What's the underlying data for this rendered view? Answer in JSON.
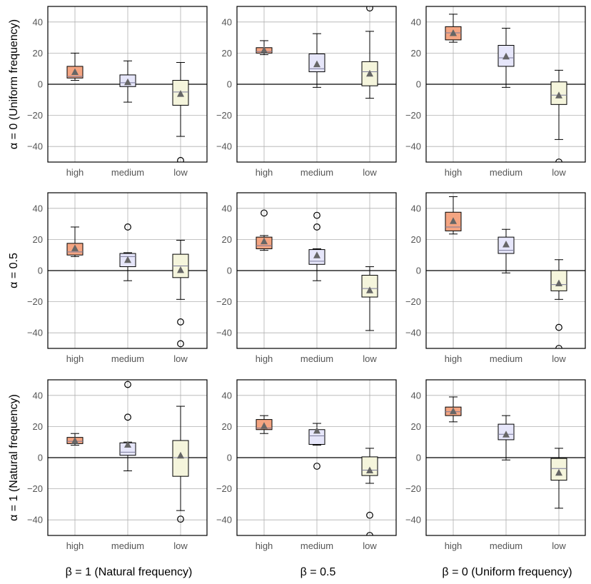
{
  "chart_data": {
    "type": "box",
    "grid": true,
    "ylim": [
      -50,
      50
    ],
    "yticks": [
      -40,
      -20,
      0,
      20,
      40
    ],
    "categories": [
      "high",
      "medium",
      "low"
    ],
    "category_colors": [
      "#F4A582",
      "#E6E6FA",
      "#F5F5DC"
    ],
    "zero_line": 0,
    "row_labels": [
      "α = 0 (Uniform frequency)",
      "α = 0.5",
      "α = 1 (Natural frequency)"
    ],
    "col_labels": [
      "β = 1 (Natural frequency)",
      "β = 0.5",
      "β = 0 (Uniform frequency)"
    ],
    "panels": [
      {
        "row": 0,
        "col": 0,
        "boxes": [
          {
            "category": "high",
            "whislo": 2.5,
            "q1": 4,
            "med": 5,
            "q3": 11.5,
            "whishi": 20,
            "mean": 8,
            "fliers": []
          },
          {
            "category": "medium",
            "whislo": -11.5,
            "q1": -1.5,
            "med": 1,
            "q3": 6,
            "whishi": 15,
            "mean": 1.5,
            "fliers": []
          },
          {
            "category": "low",
            "whislo": -33.5,
            "q1": -13.5,
            "med": -5,
            "q3": 2.5,
            "whishi": 14,
            "mean": -6,
            "fliers": [
              -49
            ]
          }
        ]
      },
      {
        "row": 0,
        "col": 1,
        "boxes": [
          {
            "category": "high",
            "whislo": 19,
            "q1": 20,
            "med": 21,
            "q3": 23.5,
            "whishi": 28,
            "mean": 22,
            "fliers": []
          },
          {
            "category": "medium",
            "whislo": -2,
            "q1": 8,
            "med": 10,
            "q3": 19.5,
            "whishi": 32.5,
            "mean": 13,
            "fliers": []
          },
          {
            "category": "low",
            "whislo": -9,
            "q1": -1,
            "med": 8,
            "q3": 14.5,
            "whishi": 34,
            "mean": 7,
            "fliers": [
              49
            ]
          }
        ]
      },
      {
        "row": 0,
        "col": 2,
        "boxes": [
          {
            "category": "high",
            "whislo": 27,
            "q1": 28.5,
            "med": 33,
            "q3": 37,
            "whishi": 45,
            "mean": 33,
            "fliers": []
          },
          {
            "category": "medium",
            "whislo": -2,
            "q1": 11.5,
            "med": 17,
            "q3": 25,
            "whishi": 36,
            "mean": 18,
            "fliers": []
          },
          {
            "category": "low",
            "whislo": -35.5,
            "q1": -13,
            "med": -7,
            "q3": 1.5,
            "whishi": 9,
            "mean": -7,
            "fliers": [
              -50
            ]
          }
        ]
      },
      {
        "row": 1,
        "col": 0,
        "boxes": [
          {
            "category": "high",
            "whislo": 9,
            "q1": 10,
            "med": 12,
            "q3": 17.5,
            "whishi": 28,
            "mean": 14.5,
            "fliers": []
          },
          {
            "category": "medium",
            "whislo": -6.5,
            "q1": 2.5,
            "med": 9,
            "q3": 11,
            "whishi": 11.5,
            "mean": 7,
            "fliers": [
              28
            ]
          },
          {
            "category": "low",
            "whislo": -18.5,
            "q1": -4.5,
            "med": 3,
            "q3": 10.5,
            "whishi": 19.5,
            "mean": 0.5,
            "fliers": [
              -33,
              -47
            ]
          }
        ]
      },
      {
        "row": 1,
        "col": 1,
        "boxes": [
          {
            "category": "high",
            "whislo": 13,
            "q1": 14,
            "med": 16,
            "q3": 21.5,
            "whishi": 22.5,
            "mean": 19,
            "fliers": [
              37
            ]
          },
          {
            "category": "medium",
            "whislo": -6.5,
            "q1": 4,
            "med": 6,
            "q3": 13.5,
            "whishi": 14,
            "mean": 10,
            "fliers": [
              28,
              35.5
            ]
          },
          {
            "category": "low",
            "whislo": -38.5,
            "q1": -17,
            "med": -11.5,
            "q3": -3,
            "whishi": 2.5,
            "mean": -12.5,
            "fliers": []
          }
        ]
      },
      {
        "row": 1,
        "col": 2,
        "boxes": [
          {
            "category": "high",
            "whislo": 23.5,
            "q1": 25.5,
            "med": 28,
            "q3": 37.5,
            "whishi": 47.5,
            "mean": 32,
            "fliers": []
          },
          {
            "category": "medium",
            "whislo": -1.5,
            "q1": 11,
            "med": 13,
            "q3": 21.5,
            "whishi": 26.5,
            "mean": 17,
            "fliers": []
          },
          {
            "category": "low",
            "whislo": -18.5,
            "q1": -13,
            "med": -9,
            "q3": 0,
            "whishi": 7,
            "mean": -8,
            "fliers": [
              -36.5,
              -50
            ]
          }
        ]
      },
      {
        "row": 2,
        "col": 0,
        "boxes": [
          {
            "category": "high",
            "whislo": 8,
            "q1": 9,
            "med": 10.5,
            "q3": 13,
            "whishi": 15.5,
            "mean": 11,
            "fliers": []
          },
          {
            "category": "medium",
            "whislo": -8.5,
            "q1": 1.5,
            "med": 3.5,
            "q3": 9.5,
            "whishi": 10,
            "mean": 8.5,
            "fliers": [
              26,
              47
            ]
          },
          {
            "category": "low",
            "whislo": -34,
            "q1": -12,
            "med": 0,
            "q3": 11,
            "whishi": 33,
            "mean": 1.5,
            "fliers": [
              -39.5
            ]
          }
        ]
      },
      {
        "row": 2,
        "col": 1,
        "boxes": [
          {
            "category": "high",
            "whislo": 15.5,
            "q1": 18,
            "med": 19,
            "q3": 24.5,
            "whishi": 27,
            "mean": 20.5,
            "fliers": []
          },
          {
            "category": "medium",
            "whislo": 8,
            "q1": 8.5,
            "med": 14,
            "q3": 18,
            "whishi": 22,
            "mean": 17.5,
            "fliers": [
              -5.5
            ]
          },
          {
            "category": "low",
            "whislo": -16.5,
            "q1": -11.5,
            "med": -8,
            "q3": 0.5,
            "whishi": 6,
            "mean": -8,
            "fliers": [
              -37,
              -50
            ]
          }
        ]
      },
      {
        "row": 2,
        "col": 2,
        "boxes": [
          {
            "category": "high",
            "whislo": 23,
            "q1": 27,
            "med": 29.5,
            "q3": 32.5,
            "whishi": 39,
            "mean": 30,
            "fliers": []
          },
          {
            "category": "medium",
            "whislo": -1.5,
            "q1": 11.5,
            "med": 15,
            "q3": 21.5,
            "whishi": 27,
            "mean": 15,
            "fliers": []
          },
          {
            "category": "low",
            "whislo": -32.5,
            "q1": -14.5,
            "med": -7,
            "q3": -0.5,
            "whishi": 6,
            "mean": -9.5,
            "fliers": []
          }
        ]
      }
    ]
  }
}
